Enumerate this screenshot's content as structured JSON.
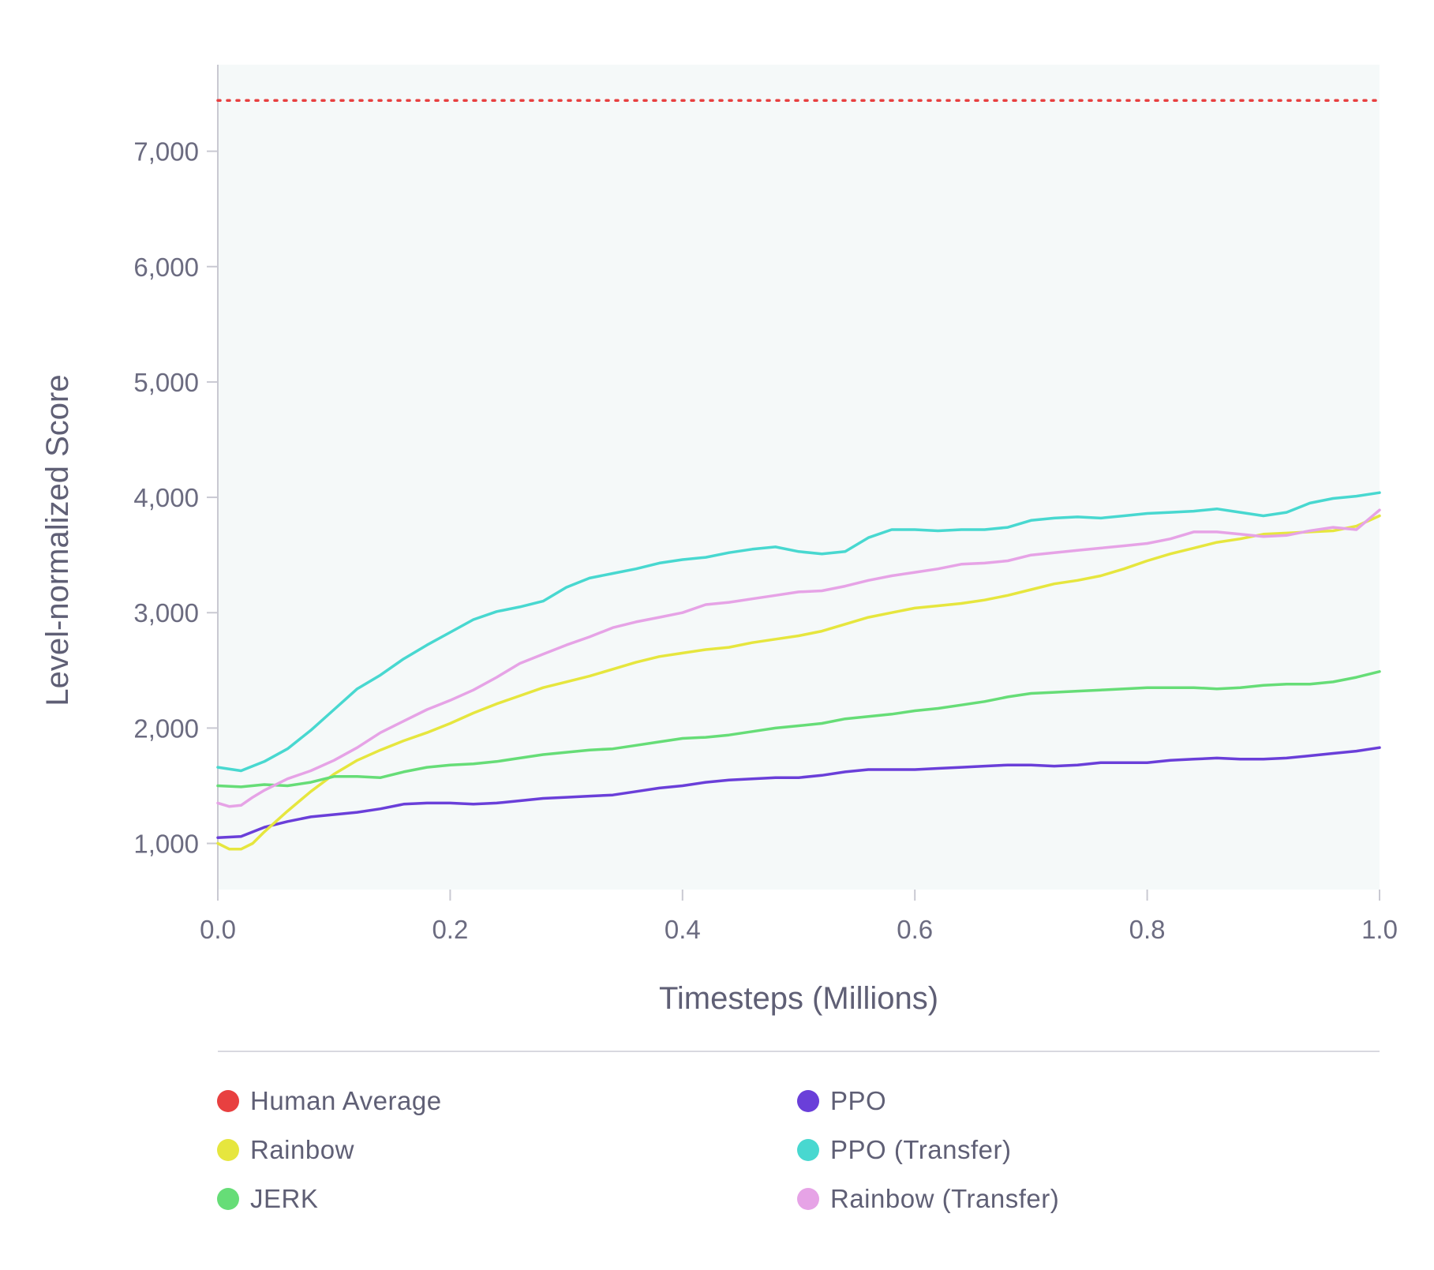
{
  "chart_data": {
    "type": "line",
    "title": "",
    "xlabel": "Timesteps (Millions)",
    "ylabel": "Level-normalized Score",
    "xlim": [
      0,
      1.0
    ],
    "ylim": [
      600,
      7750
    ],
    "xticks": [
      "0.0",
      "0.2",
      "0.4",
      "0.6",
      "0.8",
      "1.0"
    ],
    "yticks": [
      "1,000",
      "2,000",
      "3,000",
      "4,000",
      "5,000",
      "6,000",
      "7,000"
    ],
    "legend_position": "bottom",
    "reference_lines": [
      {
        "name": "Human Average",
        "y": 7440,
        "color": "#e84040",
        "style": "dotted"
      }
    ],
    "series": [
      {
        "name": "PPO",
        "color": "#6a3fd9",
        "x": [
          0,
          0.02,
          0.04,
          0.06,
          0.08,
          0.1,
          0.12,
          0.14,
          0.16,
          0.18,
          0.2,
          0.22,
          0.24,
          0.26,
          0.28,
          0.3,
          0.32,
          0.34,
          0.36,
          0.38,
          0.4,
          0.42,
          0.44,
          0.46,
          0.48,
          0.5,
          0.52,
          0.54,
          0.56,
          0.58,
          0.6,
          0.62,
          0.64,
          0.66,
          0.68,
          0.7,
          0.72,
          0.74,
          0.76,
          0.78,
          0.8,
          0.82,
          0.84,
          0.86,
          0.88,
          0.9,
          0.92,
          0.94,
          0.96,
          0.98,
          1.0
        ],
        "y": [
          1050,
          1060,
          1140,
          1190,
          1230,
          1250,
          1270,
          1300,
          1340,
          1350,
          1350,
          1340,
          1350,
          1370,
          1390,
          1400,
          1410,
          1420,
          1450,
          1480,
          1500,
          1530,
          1550,
          1560,
          1570,
          1570,
          1590,
          1620,
          1640,
          1640,
          1640,
          1650,
          1660,
          1670,
          1680,
          1680,
          1670,
          1680,
          1700,
          1700,
          1700,
          1720,
          1730,
          1740,
          1730,
          1730,
          1740,
          1760,
          1780,
          1800,
          1830
        ]
      },
      {
        "name": "Rainbow",
        "color": "#e6e63e",
        "x": [
          0,
          0.01,
          0.02,
          0.03,
          0.04,
          0.06,
          0.08,
          0.1,
          0.12,
          0.14,
          0.16,
          0.18,
          0.2,
          0.22,
          0.24,
          0.26,
          0.28,
          0.3,
          0.32,
          0.34,
          0.36,
          0.38,
          0.4,
          0.42,
          0.44,
          0.46,
          0.48,
          0.5,
          0.52,
          0.54,
          0.56,
          0.58,
          0.6,
          0.62,
          0.64,
          0.66,
          0.68,
          0.7,
          0.72,
          0.74,
          0.76,
          0.78,
          0.8,
          0.82,
          0.84,
          0.86,
          0.88,
          0.9,
          0.92,
          0.94,
          0.96,
          0.98,
          1.0
        ],
        "y": [
          1000,
          950,
          950,
          1000,
          1100,
          1280,
          1450,
          1600,
          1720,
          1810,
          1890,
          1960,
          2040,
          2130,
          2210,
          2280,
          2350,
          2400,
          2450,
          2510,
          2570,
          2620,
          2650,
          2680,
          2700,
          2740,
          2770,
          2800,
          2840,
          2900,
          2960,
          3000,
          3040,
          3060,
          3080,
          3110,
          3150,
          3200,
          3250,
          3280,
          3320,
          3380,
          3450,
          3510,
          3560,
          3610,
          3640,
          3680,
          3690,
          3700,
          3710,
          3750,
          3840
        ]
      },
      {
        "name": "JERK",
        "color": "#66dd77",
        "x": [
          0,
          0.02,
          0.04,
          0.06,
          0.08,
          0.1,
          0.12,
          0.14,
          0.16,
          0.18,
          0.2,
          0.22,
          0.24,
          0.26,
          0.28,
          0.3,
          0.32,
          0.34,
          0.36,
          0.38,
          0.4,
          0.42,
          0.44,
          0.46,
          0.48,
          0.5,
          0.52,
          0.54,
          0.56,
          0.58,
          0.6,
          0.62,
          0.64,
          0.66,
          0.68,
          0.7,
          0.72,
          0.74,
          0.76,
          0.78,
          0.8,
          0.82,
          0.84,
          0.86,
          0.88,
          0.9,
          0.92,
          0.94,
          0.96,
          0.98,
          1.0
        ],
        "y": [
          1500,
          1490,
          1510,
          1500,
          1530,
          1580,
          1580,
          1570,
          1620,
          1660,
          1680,
          1690,
          1710,
          1740,
          1770,
          1790,
          1810,
          1820,
          1850,
          1880,
          1910,
          1920,
          1940,
          1970,
          2000,
          2020,
          2040,
          2080,
          2100,
          2120,
          2150,
          2170,
          2200,
          2230,
          2270,
          2300,
          2310,
          2320,
          2330,
          2340,
          2350,
          2350,
          2350,
          2340,
          2350,
          2370,
          2380,
          2380,
          2400,
          2440,
          2490
        ]
      },
      {
        "name": "PPO (Transfer)",
        "color": "#48d8d0",
        "x": [
          0,
          0.02,
          0.04,
          0.06,
          0.08,
          0.1,
          0.12,
          0.14,
          0.16,
          0.18,
          0.2,
          0.22,
          0.24,
          0.26,
          0.28,
          0.3,
          0.32,
          0.34,
          0.36,
          0.38,
          0.4,
          0.42,
          0.44,
          0.46,
          0.48,
          0.5,
          0.52,
          0.54,
          0.56,
          0.58,
          0.6,
          0.62,
          0.64,
          0.66,
          0.68,
          0.7,
          0.72,
          0.74,
          0.76,
          0.78,
          0.8,
          0.82,
          0.84,
          0.86,
          0.88,
          0.9,
          0.92,
          0.94,
          0.96,
          0.98,
          1.0
        ],
        "y": [
          1660,
          1630,
          1710,
          1820,
          1980,
          2160,
          2340,
          2460,
          2600,
          2720,
          2830,
          2940,
          3010,
          3050,
          3100,
          3220,
          3300,
          3340,
          3380,
          3430,
          3460,
          3480,
          3520,
          3550,
          3570,
          3530,
          3510,
          3530,
          3650,
          3720,
          3720,
          3710,
          3720,
          3720,
          3740,
          3800,
          3820,
          3830,
          3820,
          3840,
          3860,
          3870,
          3880,
          3900,
          3870,
          3840,
          3870,
          3950,
          3990,
          4010,
          4040
        ]
      },
      {
        "name": "Rainbow (Transfer)",
        "color": "#e6a3e6",
        "x": [
          0,
          0.01,
          0.02,
          0.03,
          0.04,
          0.06,
          0.08,
          0.1,
          0.12,
          0.14,
          0.16,
          0.18,
          0.2,
          0.22,
          0.24,
          0.26,
          0.28,
          0.3,
          0.32,
          0.34,
          0.36,
          0.38,
          0.4,
          0.42,
          0.44,
          0.46,
          0.48,
          0.5,
          0.52,
          0.54,
          0.56,
          0.58,
          0.6,
          0.62,
          0.64,
          0.66,
          0.68,
          0.7,
          0.72,
          0.74,
          0.76,
          0.78,
          0.8,
          0.82,
          0.84,
          0.86,
          0.88,
          0.9,
          0.92,
          0.94,
          0.96,
          0.98,
          1.0
        ],
        "y": [
          1350,
          1320,
          1330,
          1400,
          1460,
          1560,
          1630,
          1720,
          1830,
          1960,
          2060,
          2160,
          2240,
          2330,
          2440,
          2560,
          2640,
          2720,
          2790,
          2870,
          2920,
          2960,
          3000,
          3070,
          3090,
          3120,
          3150,
          3180,
          3190,
          3230,
          3280,
          3320,
          3350,
          3380,
          3420,
          3430,
          3450,
          3500,
          3520,
          3540,
          3560,
          3580,
          3600,
          3640,
          3700,
          3700,
          3680,
          3660,
          3670,
          3710,
          3740,
          3720,
          3890
        ]
      }
    ]
  },
  "legend": {
    "items": [
      {
        "label": "Human Average",
        "color": "#e84040"
      },
      {
        "label": "Rainbow",
        "color": "#e6e63e"
      },
      {
        "label": "JERK",
        "color": "#66dd77"
      },
      {
        "label": "PPO",
        "color": "#6a3fd9"
      },
      {
        "label": "PPO (Transfer)",
        "color": "#48d8d0"
      },
      {
        "label": "Rainbow (Transfer)",
        "color": "#e6a3e6"
      }
    ]
  }
}
